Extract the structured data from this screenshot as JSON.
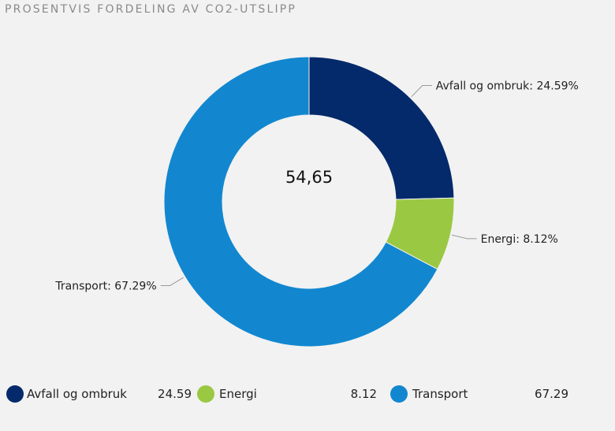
{
  "title": "PROSENTVIS FORDELING AV CO2-UTSLIPP",
  "center_value": "54,65",
  "chart_data": {
    "type": "pie",
    "donut": true,
    "title": "PROSENTVIS FORDELING AV CO2-UTSLIPP",
    "center_label": "54,65",
    "categories": [
      "Avfall og ombruk",
      "Energi",
      "Transport"
    ],
    "values": [
      24.59,
      8.12,
      67.29
    ],
    "slice_labels": [
      "Avfall og ombruk: 24.59%",
      "Energi: 8.12%",
      "Transport: 67.29%"
    ],
    "colors": [
      "#042a6b",
      "#9bc842",
      "#1287d0"
    ],
    "legend_position": "bottom"
  },
  "legend": [
    {
      "label": "Avfall og ombruk",
      "value": "24.59",
      "color": "#042a6b"
    },
    {
      "label": "Energi",
      "value": "8.12",
      "color": "#9bc842"
    },
    {
      "label": "Transport",
      "value": "67.29",
      "color": "#1287d0"
    }
  ]
}
